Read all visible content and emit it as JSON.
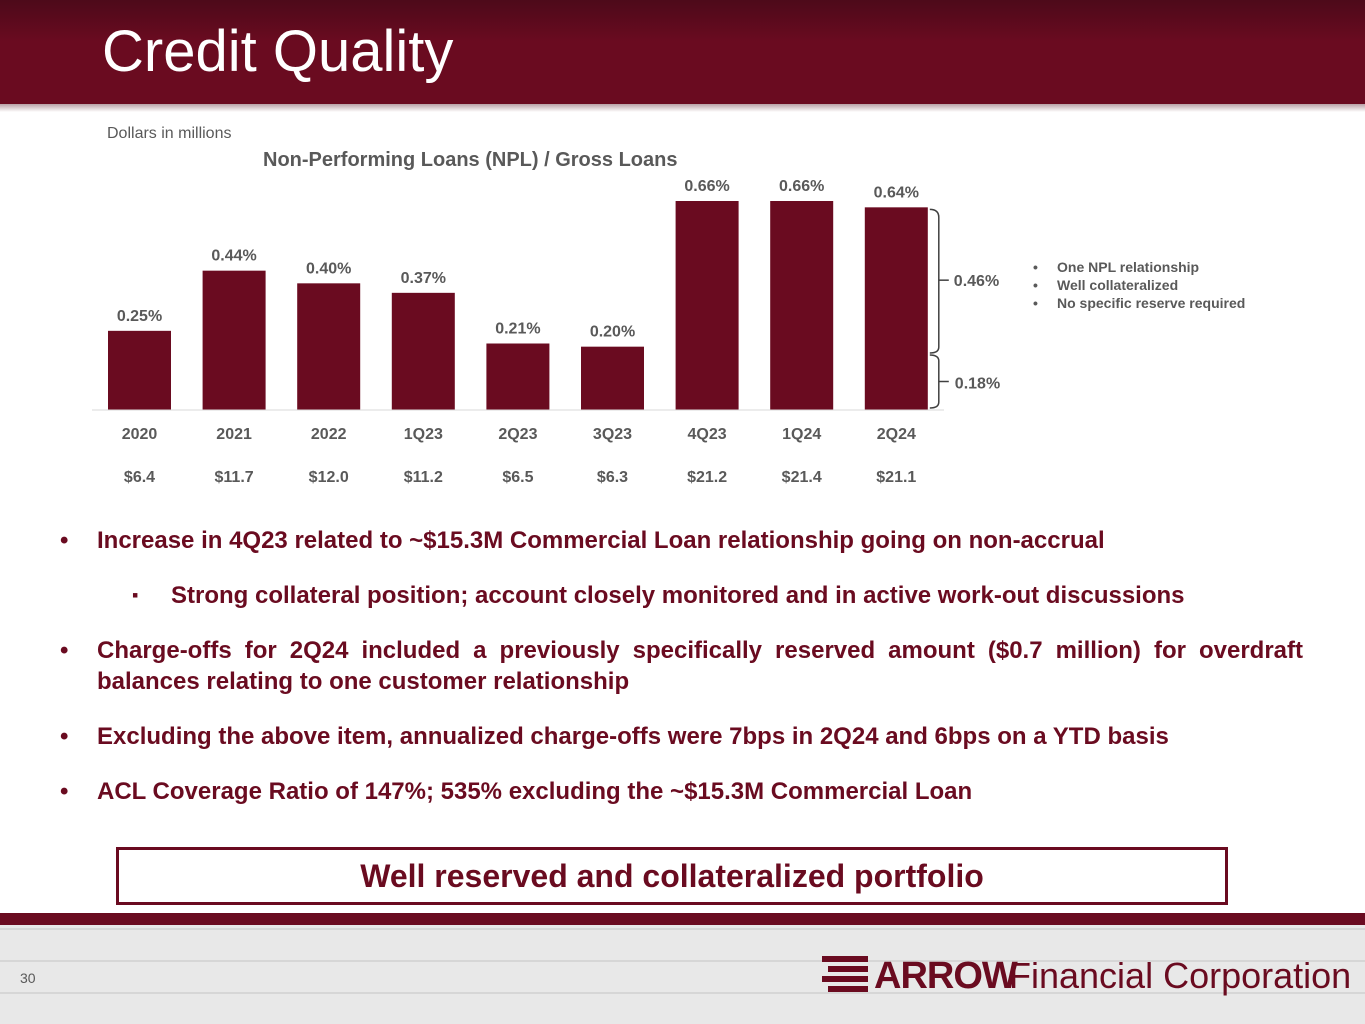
{
  "header": {
    "title": "Credit Quality"
  },
  "units_note": "Dollars in millions",
  "chart_data": {
    "type": "bar",
    "title": "Non-Performing Loans (NPL) / Gross Loans",
    "xlabel": "",
    "ylabel": "",
    "categories": [
      "2020",
      "2021",
      "2022",
      "1Q23",
      "2Q23",
      "3Q23",
      "4Q23",
      "1Q24",
      "2Q24"
    ],
    "values": [
      0.25,
      0.44,
      0.4,
      0.37,
      0.21,
      0.2,
      0.66,
      0.66,
      0.64
    ],
    "value_labels": [
      "0.25%",
      "0.44%",
      "0.40%",
      "0.37%",
      "0.21%",
      "0.20%",
      "0.66%",
      "0.66%",
      "0.64%"
    ],
    "npl_amounts": [
      "$6.4",
      "$11.7",
      "$12.0",
      "$11.2",
      "$6.5",
      "$6.3",
      "$21.2",
      "$21.4",
      "$21.1"
    ],
    "ylim": [
      0,
      0.66
    ],
    "grid": false,
    "bar_color": "#6a0b20",
    "breakdown": {
      "category": "2Q24",
      "parts": [
        {
          "value": 0.46,
          "label": "0.46%"
        },
        {
          "value": 0.18,
          "label": "0.18%"
        }
      ]
    }
  },
  "breakdown_notes": [
    "One NPL relationship",
    "Well collateralized",
    "No specific reserve required"
  ],
  "bullets": [
    "Increase in 4Q23 related to ~$15.3M Commercial Loan relationship going on non-accrual",
    "Strong collateral position; account closely monitored and in active work-out discussions",
    "Charge-offs for 2Q24 included a previously specifically reserved amount ($0.7 million) for overdraft balances relating to one customer relationship",
    "Excluding the above item, annualized charge-offs were 7bps in 2Q24 and 6bps on a YTD basis",
    "ACL Coverage Ratio of 147%; 535% excluding the ~$15.3M Commercial Loan"
  ],
  "callout": "Well reserved and collateralized portfolio",
  "footer": {
    "page_number": "30",
    "logo_brand": "ARROW",
    "logo_name": "Financial Corporation"
  },
  "colors": {
    "brand": "#6a0b20",
    "text_gray": "#595959"
  }
}
